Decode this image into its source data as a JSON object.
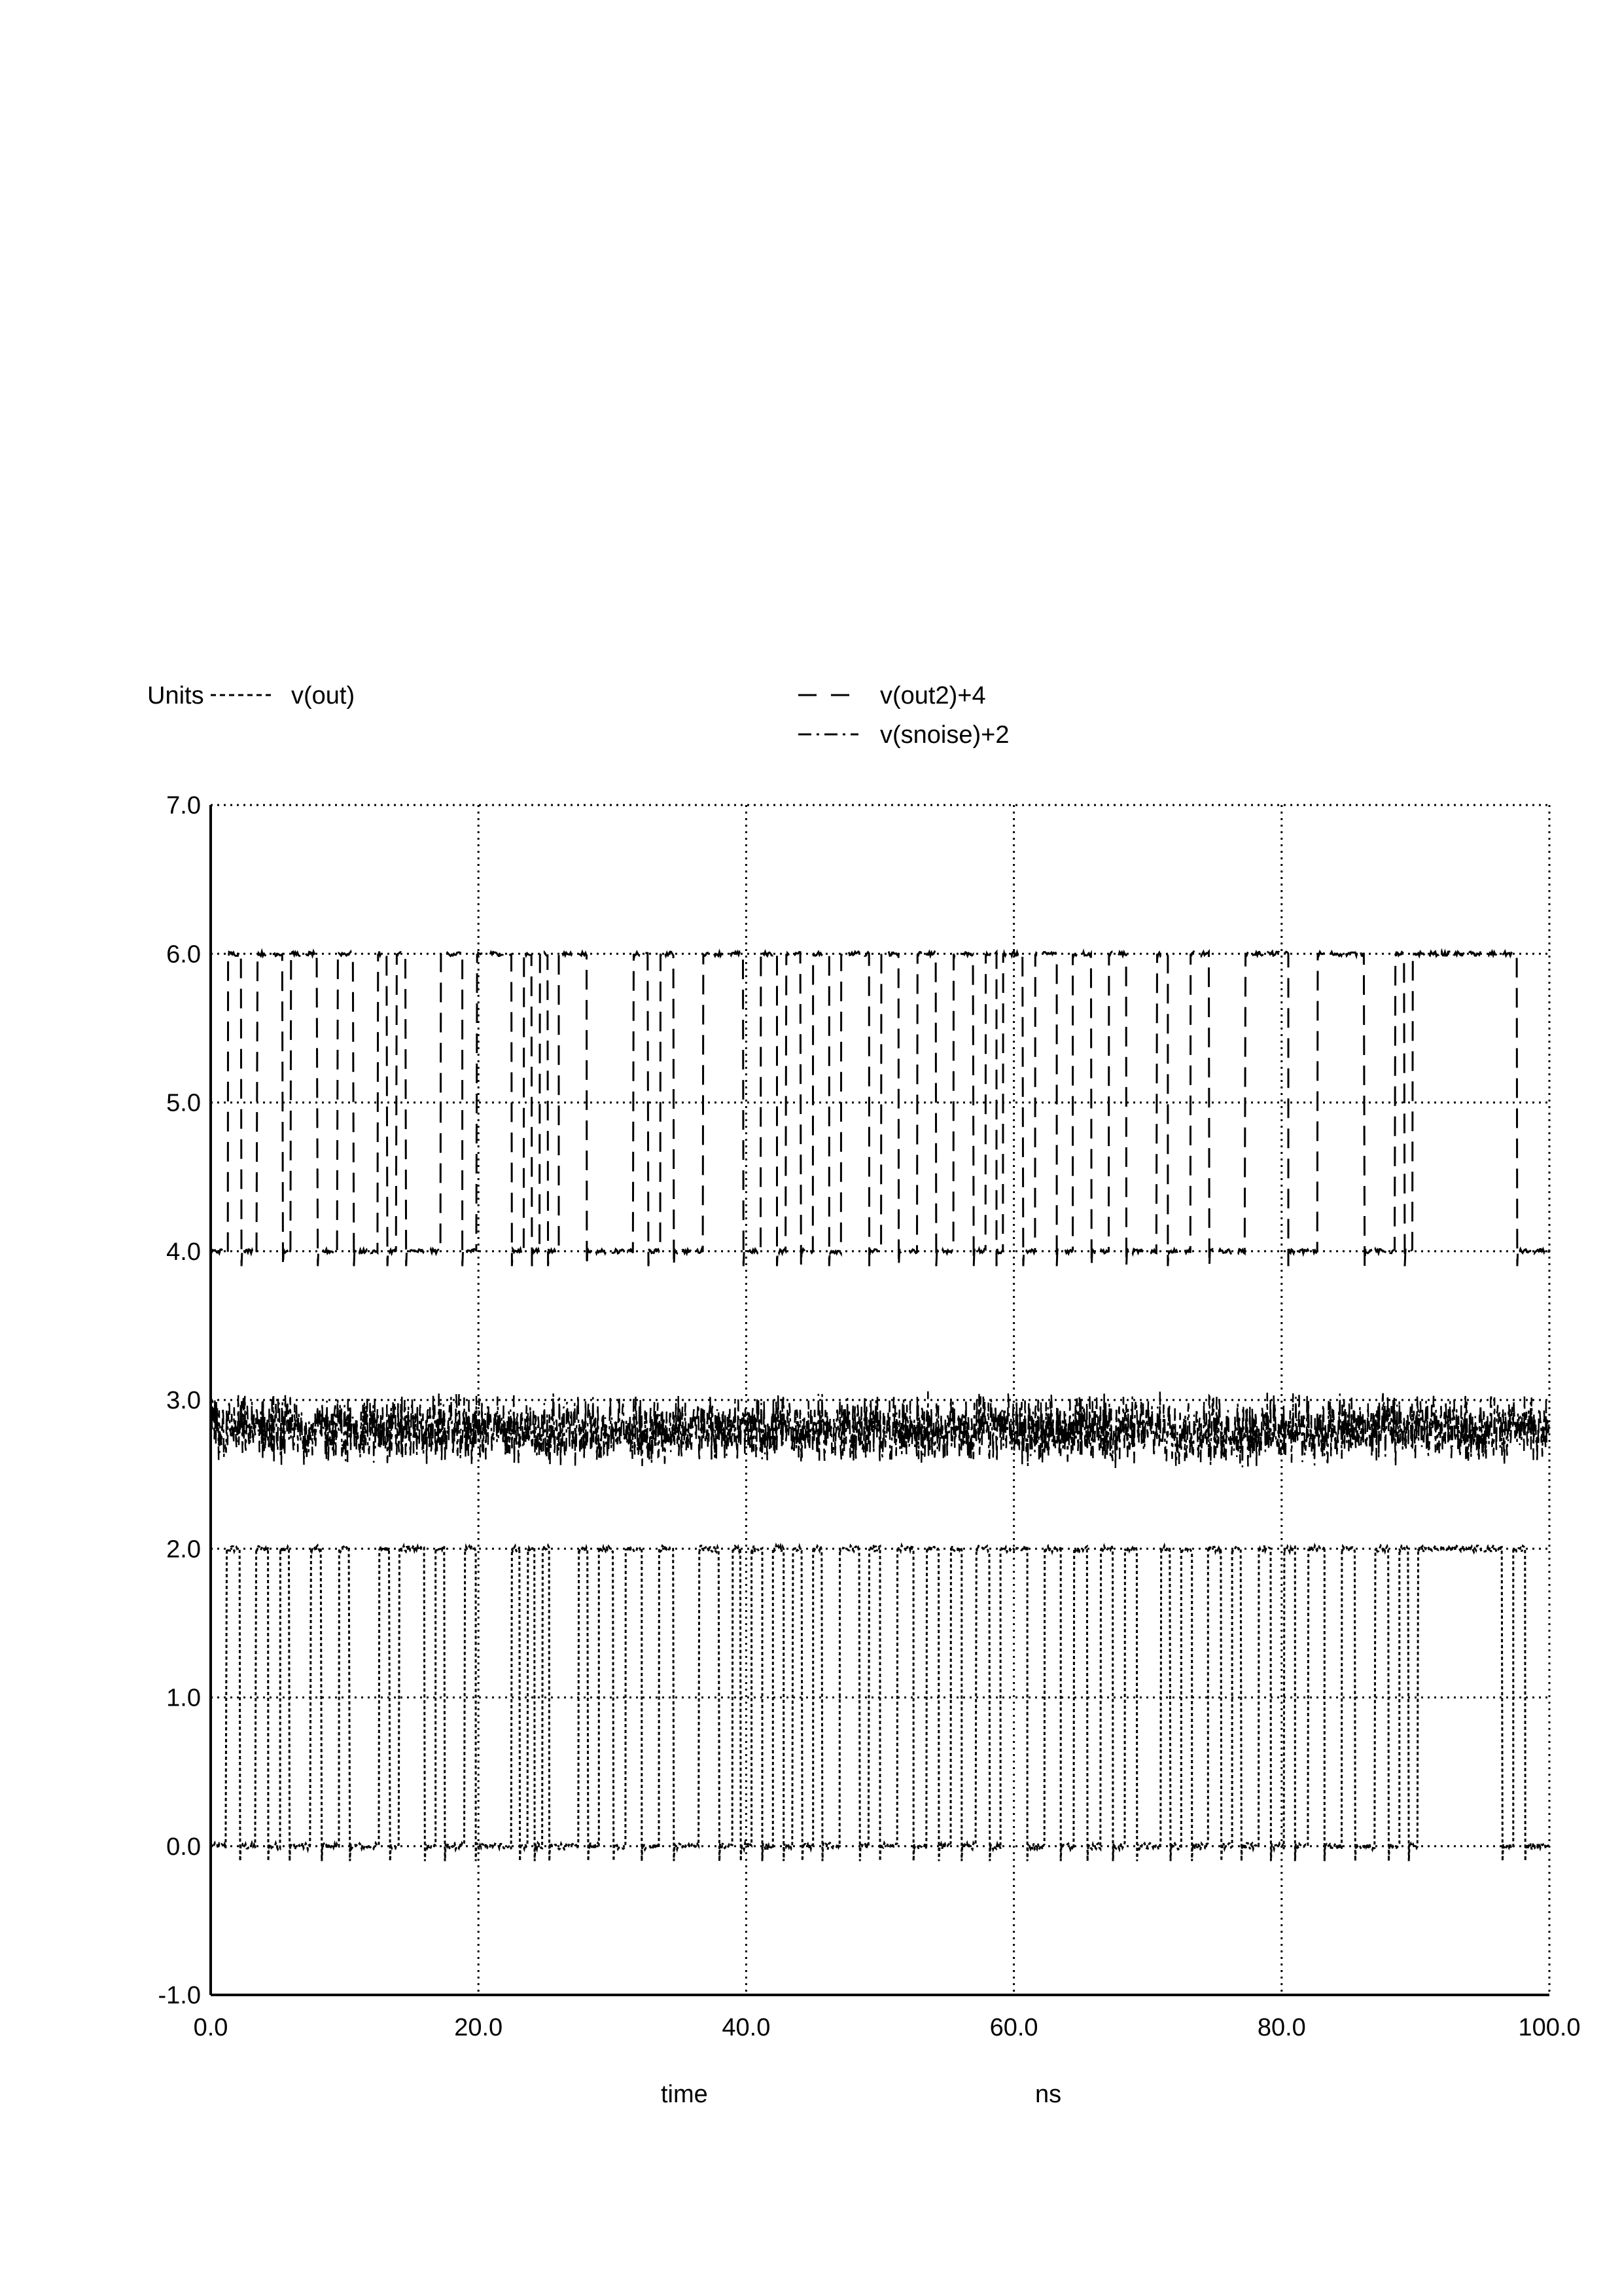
{
  "chart_data": {
    "type": "line",
    "ylabel": "Units",
    "xlabel": "time",
    "xunit": "ns",
    "xlim": [
      0,
      100
    ],
    "ylim": [
      -1,
      7
    ],
    "xticks": [
      0,
      20,
      40,
      60,
      80,
      100
    ],
    "xtick_labels": [
      "0.0",
      "20.0",
      "40.0",
      "60.0",
      "80.0",
      "100.0"
    ],
    "yticks": [
      -1,
      0,
      1,
      2,
      3,
      4,
      5,
      6,
      7
    ],
    "ytick_labels": [
      "-1.0",
      "0.0",
      "1.0",
      "2.0",
      "3.0",
      "4.0",
      "5.0",
      "6.0",
      "7.0"
    ],
    "grid": true,
    "legend": "top",
    "series": [
      {
        "name": "v(out)",
        "style": "dotted",
        "baseline": 0,
        "high": 2,
        "transitions": [
          1.2,
          2.2,
          3.4,
          4.3,
          5.2,
          5.9,
          7.5,
          8.3,
          9.6,
          10.4,
          12.6,
          13.4,
          14.1,
          16.0,
          16.8,
          17.5,
          19.0,
          19.8,
          22.5,
          23.1,
          23.7,
          24.2,
          24.8,
          25.3,
          27.5,
          28.2,
          29.0,
          30.1,
          31.0,
          32.2,
          33.5,
          34.6,
          36.5,
          38.0,
          39.0,
          39.6,
          40.4,
          41.2,
          42.0,
          42.8,
          43.5,
          44.2,
          45.0,
          45.7,
          47.0,
          48.5,
          49.2,
          50.0,
          51.3,
          52.5,
          53.5,
          54.4,
          55.3,
          56.1,
          57.2,
          58.2,
          59.0,
          61.0,
          62.3,
          63.5,
          64.5,
          65.5,
          66.5,
          67.4,
          68.3,
          69.2,
          71.0,
          71.7,
          72.5,
          73.3,
          74.5,
          75.5,
          76.3,
          77.0,
          78.3,
          79.2,
          80.2,
          81.0,
          82.0,
          83.2,
          84.5,
          85.5,
          87.0,
          88.0,
          88.8,
          89.5,
          90.2,
          96.5,
          97.3,
          98.2
        ],
        "noise_pp": 0.15
      },
      {
        "name": "v(out2)+4",
        "style": "dashed",
        "baseline": 4,
        "high": 6,
        "transitions": [
          1.3,
          2.3,
          3.5,
          5.4,
          6.0,
          8.0,
          9.5,
          10.7,
          12.5,
          13.2,
          13.9,
          14.6,
          17.2,
          18.8,
          19.9,
          22.5,
          23.4,
          24.0,
          24.6,
          25.2,
          26.0,
          28.1,
          31.6,
          32.7,
          33.6,
          34.6,
          36.8,
          39.8,
          41.1,
          42.3,
          43.0,
          44.1,
          45.0,
          46.2,
          47.1,
          49.2,
          50.1,
          51.4,
          52.8,
          54.2,
          55.5,
          57.0,
          57.9,
          58.7,
          59.2,
          60.7,
          61.6,
          63.2,
          64.4,
          65.8,
          67.1,
          68.4,
          70.7,
          71.5,
          73.2,
          74.6,
          77.3,
          80.5,
          82.7,
          86.2,
          88.5,
          89.2,
          89.8,
          97.6
        ],
        "noise_pp": 0.1
      },
      {
        "name": "v(snoise)+2",
        "style": "dashdot",
        "baseline": 2.8,
        "noise_pp": 0.35
      }
    ]
  }
}
